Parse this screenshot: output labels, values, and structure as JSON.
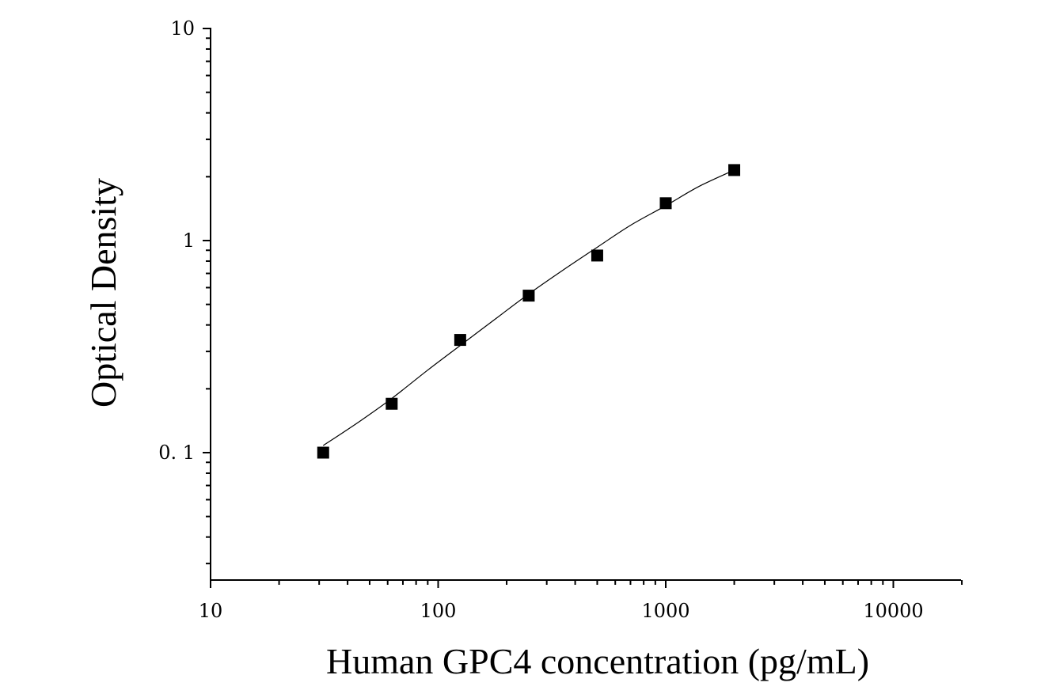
{
  "chart_data": {
    "type": "scatter",
    "title": "",
    "xlabel": "Human GPC4 concentration (pg/mL)",
    "ylabel": "Optical Density",
    "x_scale": "log",
    "y_scale": "log",
    "xlim": [
      10,
      20000
    ],
    "ylim": [
      0.025,
      10
    ],
    "x_ticks": [
      {
        "value": 10,
        "label": "10"
      },
      {
        "value": 100,
        "label": "100"
      },
      {
        "value": 1000,
        "label": "1000"
      },
      {
        "value": 10000,
        "label": "10000"
      }
    ],
    "y_ticks": [
      {
        "value": 0.1,
        "label": "0. 1"
      },
      {
        "value": 1,
        "label": "1"
      },
      {
        "value": 10,
        "label": "10"
      }
    ],
    "grid": false,
    "legend": "none",
    "series": [
      {
        "type": "scatter",
        "marker": "square",
        "color": "#000000",
        "x": [
          31.25,
          62.5,
          125,
          250,
          500,
          1000,
          2000
        ],
        "y": [
          0.1,
          0.17,
          0.34,
          0.55,
          0.85,
          1.5,
          2.15
        ]
      },
      {
        "type": "line",
        "fit": true,
        "color": "#000000",
        "x": [
          31.25,
          45,
          62.5,
          90,
          125,
          180,
          250,
          350,
          500,
          700,
          1000,
          1400,
          2000
        ],
        "y": [
          0.108,
          0.14,
          0.18,
          0.245,
          0.32,
          0.43,
          0.56,
          0.72,
          0.93,
          1.18,
          1.46,
          1.8,
          2.15
        ]
      }
    ]
  }
}
